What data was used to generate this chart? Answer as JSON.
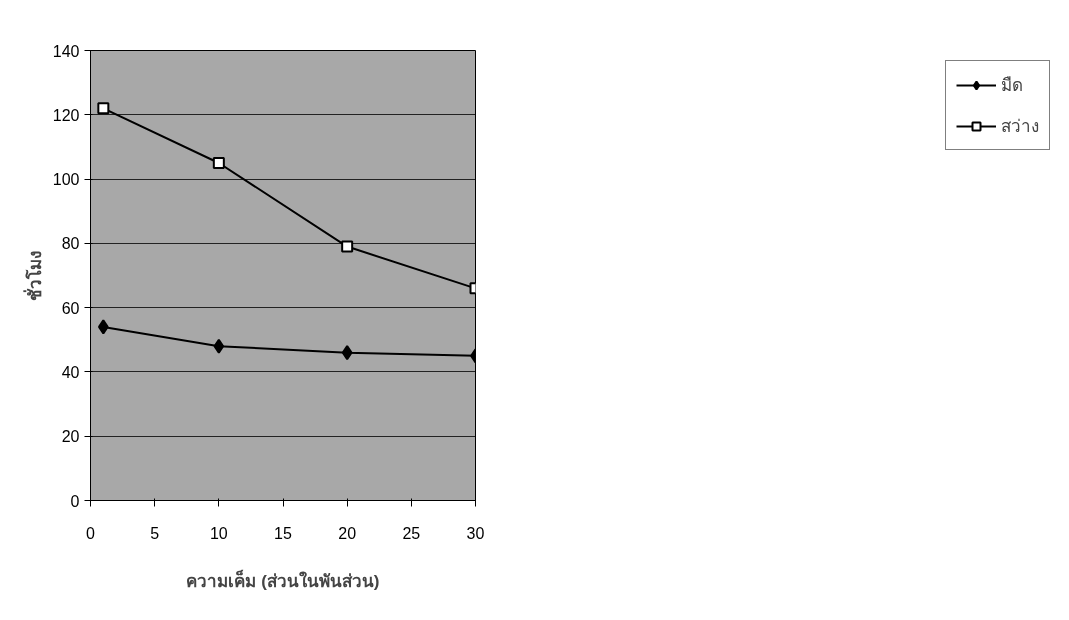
{
  "chart_data": {
    "type": "line",
    "xlabel": "ความเค็ม (ส่วนในพันส่วน)",
    "ylabel": "ชั่วโมง",
    "x": [
      1,
      10,
      20,
      30
    ],
    "series": [
      {
        "name": "มืด",
        "color": "#000000",
        "marker": "diamond",
        "values": [
          54,
          48,
          46,
          45
        ]
      },
      {
        "name": "สว่าง",
        "color": "#000000",
        "marker": "square",
        "values": [
          122,
          105,
          79,
          66
        ]
      }
    ],
    "xlim": [
      0,
      30
    ],
    "xticks": [
      0,
      5,
      10,
      15,
      20,
      25,
      30
    ],
    "ylim": [
      0,
      140
    ],
    "yticks": [
      0,
      20,
      40,
      60,
      80,
      100,
      120,
      140
    ],
    "grid": "y",
    "legend": "right"
  }
}
